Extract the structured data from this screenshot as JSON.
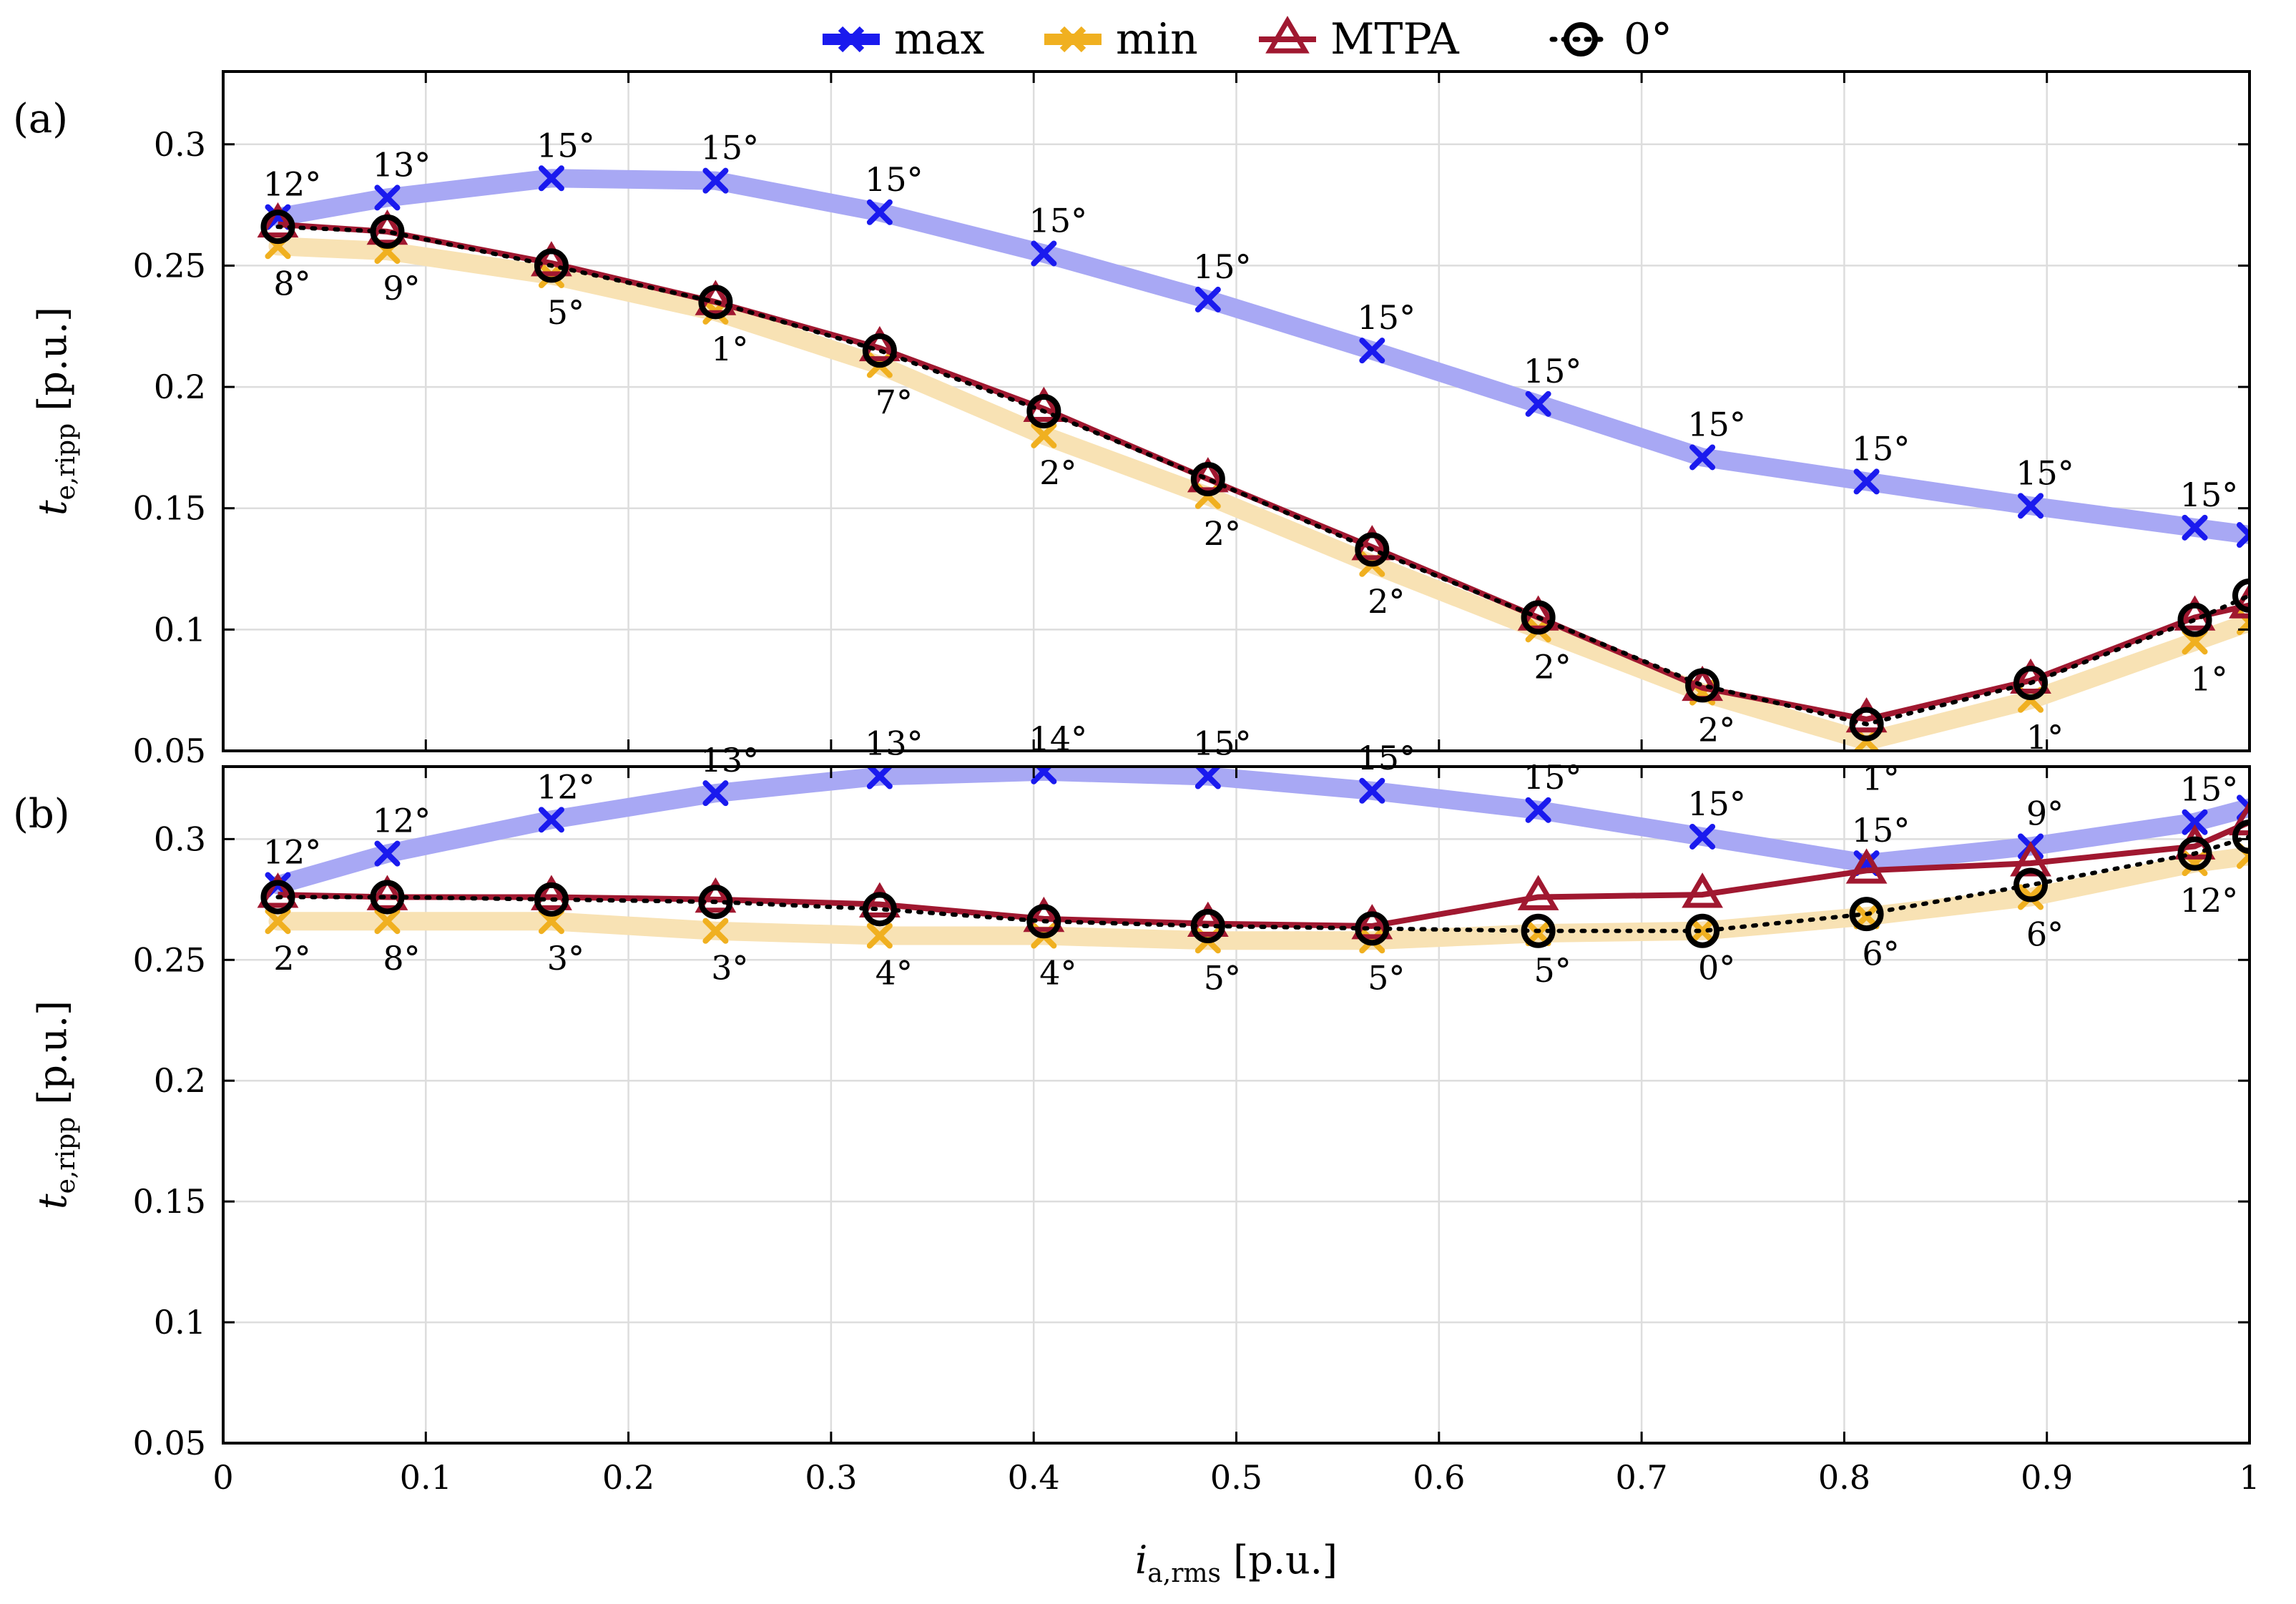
{
  "chart_data": {
    "type": "line",
    "x": [
      0.027,
      0.081,
      0.162,
      0.243,
      0.324,
      0.405,
      0.486,
      0.567,
      0.649,
      0.73,
      0.811,
      0.892,
      0.973,
      1.0
    ],
    "xlabel_main": "i",
    "xlabel_sub": "a,rms",
    "xlabel_unit": " [p.u.]",
    "ylabel_main": "t",
    "ylabel_sub": "e,ripp",
    "ylabel_unit": " [p.u.]",
    "xlim": [
      0,
      1
    ],
    "ylim": [
      0.05,
      0.33
    ],
    "xticks": [
      0,
      0.1,
      0.2,
      0.3,
      0.4,
      0.5,
      0.6,
      0.7,
      0.8,
      0.9,
      1
    ],
    "xtick_labels": [
      "0",
      "0.1",
      "0.2",
      "0.3",
      "0.4",
      "0.5",
      "0.6",
      "0.7",
      "0.8",
      "0.9",
      "1"
    ],
    "yticks": [
      0.05,
      0.1,
      0.15,
      0.2,
      0.25,
      0.3
    ],
    "ytick_labels": [
      "0.05",
      "0.1",
      "0.15",
      "0.2",
      "0.25",
      "0.3"
    ],
    "grid": true,
    "legend": {
      "placement": "top-center",
      "entries": [
        {
          "name": "max",
          "color": "#1a1aee"
        },
        {
          "name": "min",
          "color": "#f0b020"
        },
        {
          "name": "MTPA",
          "color": "#a01830"
        },
        {
          "name": "0°",
          "color": "#000000"
        }
      ]
    },
    "colors": {
      "max_band": "#a8a8f4",
      "min_band": "#f8e2b4",
      "max_marker": "#1a1aee",
      "min_marker": "#f0b020",
      "mtpa_line": "#a01830",
      "zero_line": "#000000",
      "grid": "#dddddd"
    },
    "panels": [
      {
        "label": "(a)",
        "series": [
          {
            "name": "max",
            "values": [
              0.27,
              0.278,
              0.286,
              0.285,
              0.272,
              0.255,
              0.236,
              0.215,
              0.193,
              0.171,
              0.161,
              0.151,
              0.142,
              0.139
            ]
          },
          {
            "name": "min",
            "values": [
              0.258,
              0.256,
              0.246,
              0.231,
              0.209,
              0.18,
              0.155,
              0.127,
              0.1,
              0.074,
              0.054,
              0.071,
              0.095,
              0.103
            ]
          },
          {
            "name": "MTPA",
            "values": [
              0.267,
              0.264,
              0.251,
              0.235,
              0.216,
              0.191,
              0.162,
              0.134,
              0.105,
              0.076,
              0.063,
              0.079,
              0.105,
              0.11
            ]
          },
          {
            "name": "0°",
            "values": [
              0.266,
              0.264,
              0.25,
              0.235,
              0.215,
              0.19,
              0.162,
              0.133,
              0.105,
              0.077,
              0.061,
              0.078,
              0.104,
              0.114
            ]
          }
        ],
        "max_angles": [
          "12°",
          "13°",
          "15°",
          "15°",
          "15°",
          "15°",
          "15°",
          "15°",
          "15°",
          "15°",
          "15°",
          "15°",
          "15°"
        ],
        "min_angles": [
          "8°",
          "9°",
          "5°",
          "1°",
          "7°",
          "2°",
          "2°",
          "2°",
          "2°",
          "2°",
          "1°",
          "1°",
          "1°"
        ]
      },
      {
        "label": "(b)",
        "series": [
          {
            "name": "max",
            "values": [
              0.281,
              0.294,
              0.308,
              0.319,
              0.326,
              0.328,
              0.326,
              0.32,
              0.312,
              0.301,
              0.29,
              0.297,
              0.307,
              0.313
            ]
          },
          {
            "name": "min",
            "values": [
              0.266,
              0.266,
              0.266,
              0.262,
              0.26,
              0.26,
              0.258,
              0.258,
              0.261,
              0.262,
              0.268,
              0.276,
              0.29,
              0.293
            ]
          },
          {
            "name": "MTPA",
            "values": [
              0.277,
              0.276,
              0.276,
              0.275,
              0.273,
              0.267,
              0.265,
              0.264,
              0.276,
              0.277,
              0.287,
              0.29,
              0.297,
              0.307
            ]
          },
          {
            "name": "0°",
            "values": [
              0.276,
              0.276,
              0.275,
              0.274,
              0.271,
              0.266,
              0.264,
              0.263,
              0.262,
              0.262,
              0.269,
              0.281,
              0.294,
              0.301
            ]
          }
        ],
        "max_angles": [
          "12°",
          "12°",
          "12°",
          "13°",
          "13°",
          "14°",
          "15°",
          "15°",
          "15°",
          "15°",
          "15°",
          "9°",
          "15°"
        ],
        "min_angles": [
          "2°",
          "8°",
          "3°",
          "3°",
          "4°",
          "4°",
          "5°",
          "5°",
          "5°",
          "0°",
          "6°",
          "6°",
          "12°"
        ]
      }
    ]
  }
}
